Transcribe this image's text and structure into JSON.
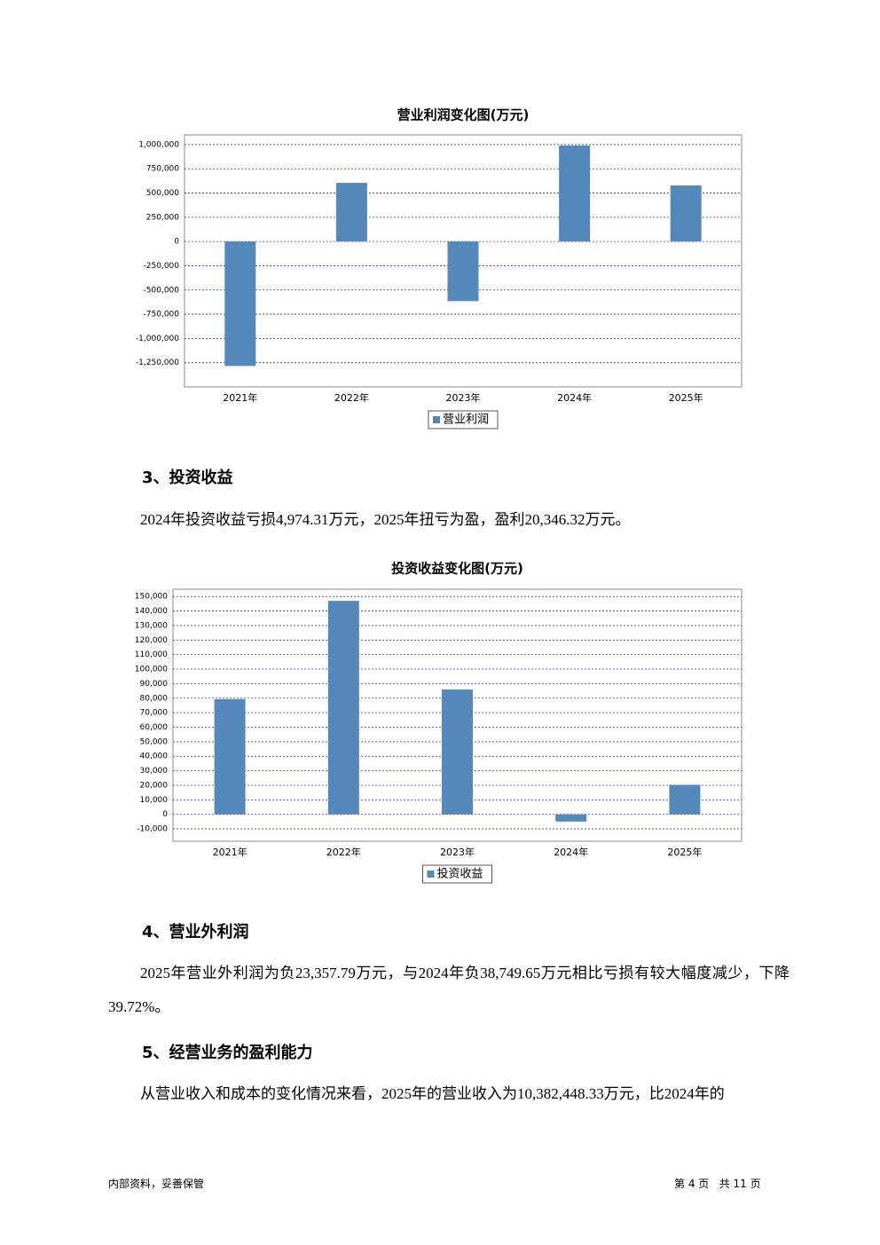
{
  "chart_data": [
    {
      "type": "bar",
      "title": "营业利润变化图(万元)",
      "categories": [
        "2021年",
        "2022年",
        "2023年",
        "2024年",
        "2025年"
      ],
      "series": [
        {
          "name": "营业利润",
          "color": "#5588bb",
          "values": [
            -1284000,
            605000,
            -615000,
            990000,
            578000
          ]
        }
      ],
      "ylim": [
        -1500000,
        1100000
      ],
      "yticks": [
        {
          "value": 1000000,
          "label": "1,000,000"
        },
        {
          "value": 750000,
          "label": "750,000"
        },
        {
          "value": 500000,
          "label": "500,000"
        },
        {
          "value": 250000,
          "label": "250,000"
        },
        0,
        {
          "value": -250000,
          "label": "-250,000"
        },
        {
          "value": -500000,
          "label": "-500,000"
        },
        {
          "value": -750000,
          "label": "-750,000"
        },
        {
          "value": -1000000,
          "label": "-1,000,000"
        },
        {
          "value": -1250000,
          "label": "-1,250,000"
        }
      ],
      "grid": true
    },
    {
      "type": "bar",
      "title": "投资收益变化图(万元)",
      "categories": [
        "2021年",
        "2022年",
        "2023年",
        "2024年",
        "2025年"
      ],
      "series": [
        {
          "name": "投资收益",
          "color": "#5588bb",
          "values": [
            79300,
            147000,
            86000,
            -4974.31,
            20346.32
          ]
        }
      ],
      "ylim": [
        -18500,
        155000
      ],
      "yticks": [
        {
          "value": 150000,
          "label": "150,000"
        },
        {
          "value": 140000,
          "label": "140,000"
        },
        {
          "value": 130000,
          "label": "130,000"
        },
        {
          "value": 120000,
          "label": "120,000"
        },
        {
          "value": 110000,
          "label": "110,000"
        },
        {
          "value": 100000,
          "label": "100,000"
        },
        {
          "value": 90000,
          "label": "90,000"
        },
        {
          "value": 80000,
          "label": "80,000"
        },
        {
          "value": 70000,
          "label": "70,000"
        },
        {
          "value": 60000,
          "label": "60,000"
        },
        {
          "value": 50000,
          "label": "50,000"
        },
        {
          "value": 40000,
          "label": "40,000"
        },
        {
          "value": 30000,
          "label": "30,000"
        },
        {
          "value": 20000,
          "label": "20,000"
        },
        {
          "value": 10000,
          "label": "10,000"
        },
        0,
        {
          "value": -10000,
          "label": "-10,000"
        }
      ],
      "grid": true
    }
  ],
  "document": {
    "sections": [
      {
        "heading": "3、投资收益",
        "paragraphs": [
          "2024年投资收益亏损4,974.31万元，2025年扭亏为盈，盈利20,346.32万元。"
        ]
      },
      {
        "heading": "4、营业外利润",
        "paragraphs": [
          "2025年营业外利润为负23,357.79万元，与2024年负38,749.65万元相比亏损有较大幅度减少，下降39.72%。"
        ]
      },
      {
        "heading": "5、经营业务的盈利能力",
        "paragraphs": [
          "从营业收入和成本的变化情况来看，2025年的营业收入为10,382,448.33万元，比2024年的"
        ]
      }
    ],
    "footer": {
      "left": "内部资料，妥善保管",
      "right": "第 4 页   共 11 页"
    }
  }
}
